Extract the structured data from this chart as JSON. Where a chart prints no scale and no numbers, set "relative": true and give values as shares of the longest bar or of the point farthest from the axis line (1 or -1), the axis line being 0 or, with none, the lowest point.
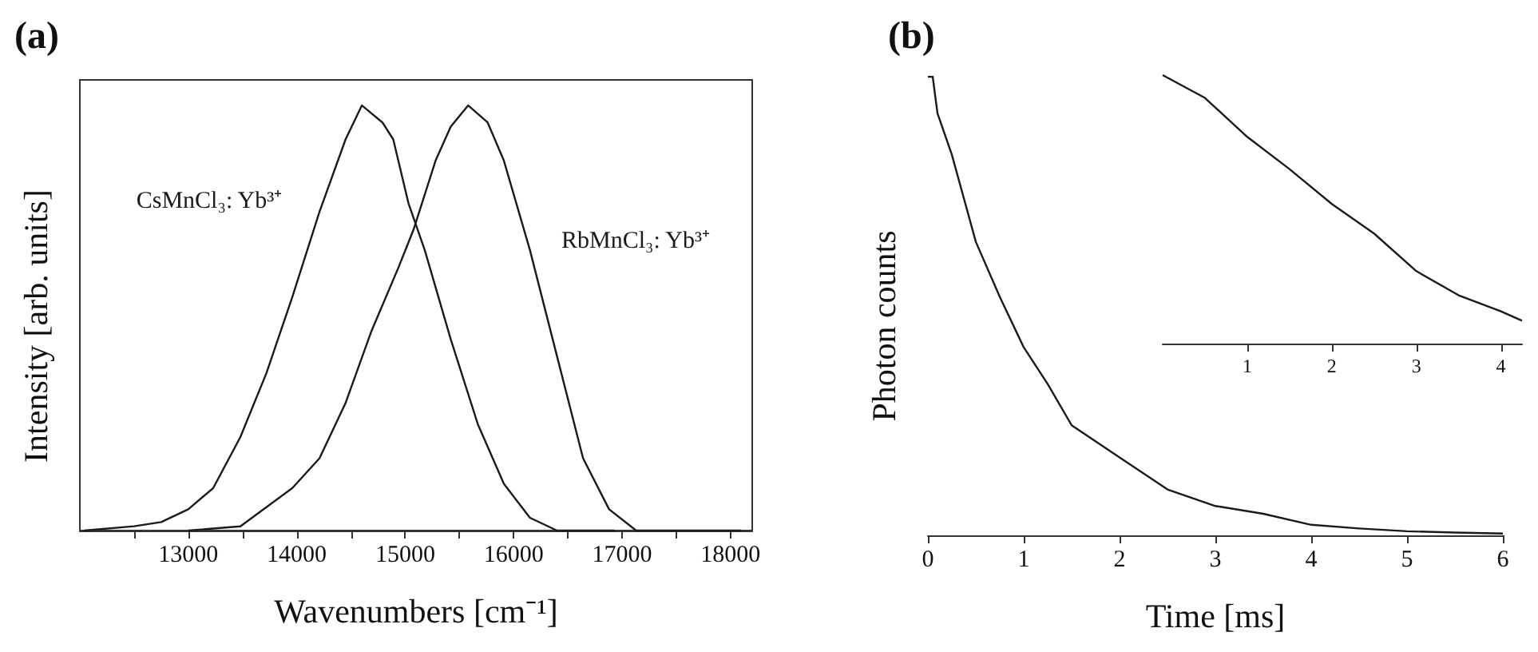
{
  "chart_data": [
    {
      "type": "line",
      "title": "(a)",
      "xlabel": "Wavenumbers [cm⁻¹]",
      "ylabel": "Intensity [arb. units]",
      "relative": true,
      "tick_labels": "x",
      "marker": "none",
      "line_style": "solid",
      "legend": false,
      "grid": false,
      "xlim": [
        12000,
        18200
      ],
      "xticks": [
        {
          "value": 12500,
          "label": null
        },
        13000,
        {
          "value": 13500,
          "label": null
        },
        14000,
        {
          "value": 14500,
          "label": null
        },
        15000,
        {
          "value": 15500,
          "label": null
        },
        16000,
        {
          "value": 16500,
          "label": null
        },
        17000,
        {
          "value": 17500,
          "label": null
        },
        18000
      ],
      "series": [
        {
          "name": "CsMnCl₃: Yb³⁺",
          "color": "#1a1a1a",
          "x": [
            12040,
            12500,
            12750,
            13000,
            13230,
            13480,
            13720,
            13960,
            14210,
            14450,
            14600,
            14790,
            14890,
            15030,
            15180,
            15420,
            15670,
            15910,
            16150,
            16400,
            16930
          ],
          "values": [
            0.0,
            0.01,
            0.02,
            0.05,
            0.1,
            0.22,
            0.37,
            0.55,
            0.75,
            0.92,
            1.0,
            0.96,
            0.92,
            0.77,
            0.66,
            0.45,
            0.25,
            0.11,
            0.03,
            0.0,
            0.0
          ]
        },
        {
          "name": "RbMnCl₃: Yb³⁺",
          "color": "#1a1a1a",
          "x": [
            13000,
            13480,
            13960,
            14210,
            14450,
            14690,
            14940,
            15080,
            15280,
            15420,
            15580,
            15760,
            15910,
            16150,
            16400,
            16640,
            16880,
            17130,
            18100
          ],
          "values": [
            0.0,
            0.01,
            0.1,
            0.17,
            0.3,
            0.47,
            0.62,
            0.71,
            0.87,
            0.95,
            1.0,
            0.96,
            0.87,
            0.66,
            0.41,
            0.17,
            0.05,
            0.0,
            0.0
          ]
        }
      ]
    },
    {
      "type": "line",
      "title": "(b)",
      "xlabel": "Time [ms]",
      "ylabel": "Photon counts",
      "relative": true,
      "tick_labels": "x",
      "marker": "none",
      "line_style": "solid",
      "legend": false,
      "grid": false,
      "xlim": [
        0,
        6
      ],
      "xticks": [
        0,
        1,
        2,
        3,
        4,
        5,
        6
      ],
      "series": [
        {
          "color": "#1a1a1a",
          "x": [
            0,
            0.05,
            0.1,
            0.25,
            0.5,
            0.75,
            1,
            1.25,
            1.5,
            2,
            2.5,
            3,
            3.5,
            4,
            4.5,
            5,
            5.5,
            6
          ],
          "values": [
            1.0,
            1.0,
            0.92,
            0.83,
            0.64,
            0.52,
            0.41,
            0.33,
            0.24,
            0.17,
            0.1,
            0.064,
            0.047,
            0.023,
            0.015,
            0.009,
            0.006,
            0.004
          ]
        }
      ]
    },
    {
      "type": "line",
      "relative": true,
      "tick_labels": "x",
      "marker": "none",
      "line_style": "solid",
      "legend": false,
      "grid": false,
      "xlim": [
        0,
        4.25
      ],
      "xticks": [
        1,
        2,
        3,
        4
      ],
      "series": [
        {
          "color": "#1a1a1a",
          "x": [
            0,
            0.5,
            1,
            1.5,
            2,
            2.5,
            3,
            3.5,
            4,
            4.25
          ],
          "values": [
            1.0,
            0.915,
            0.77,
            0.65,
            0.52,
            0.41,
            0.27,
            0.18,
            0.12,
            0.085
          ]
        }
      ]
    }
  ]
}
